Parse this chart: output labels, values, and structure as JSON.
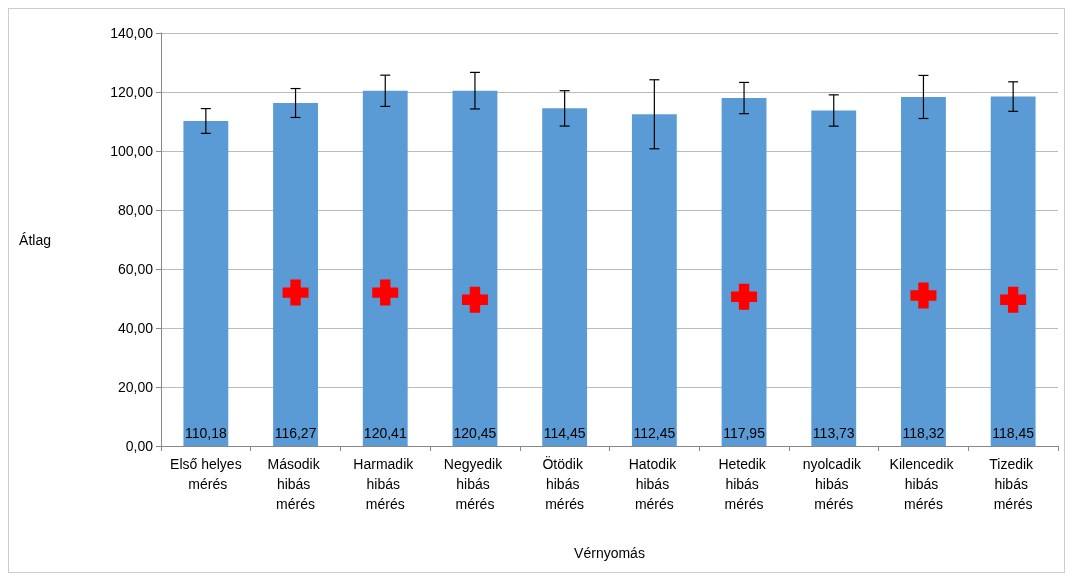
{
  "chart_data": {
    "type": "bar",
    "xlabel": "Vérnyomás",
    "ylabel": "Átlag",
    "categories": [
      "Első helyes mérés",
      "Második hibás mérés",
      "Harmadik hibás mérés",
      "Negyedik hibás mérés",
      "Ötödik hibás mérés",
      "Hatodik hibás mérés",
      "Hetedik hibás mérés",
      "nyolcadik hibás mérés",
      "Kilencedik hibás mérés",
      "Tizedik hibás mérés"
    ],
    "series": [
      {
        "color": "#5b9bd5",
        "values": [
          110.18,
          116.27,
          120.41,
          120.45,
          114.45,
          112.45,
          117.95,
          113.73,
          118.32,
          118.45
        ],
        "errors": [
          4.2,
          4.9,
          5.3,
          6.2,
          6.0,
          11.7,
          5.3,
          5.3,
          7.3,
          5.0
        ],
        "value_labels": [
          "110,18",
          "116,27",
          "120,41",
          "120,45",
          "114,45",
          "112,45",
          "117,95",
          "113,73",
          "118,32",
          "118,45"
        ]
      },
      {
        "type": "scatter",
        "color": "#ff0000",
        "marker": "cross",
        "x": [
          "Második hibás mérés",
          "Harmadik hibás mérés",
          "Negyedik hibás mérés",
          "Hetedik hibás mérés",
          "Kilencedik hibás mérés",
          "Tizedik hibás mérés"
        ],
        "values": [
          52,
          52,
          49.6,
          50.6,
          51,
          49.6
        ]
      }
    ],
    "ylim": [
      0,
      140
    ],
    "yticks": [
      {
        "value": 0,
        "label": "0,00"
      },
      {
        "value": 20,
        "label": "20,00"
      },
      {
        "value": 40,
        "label": "40,00"
      },
      {
        "value": 60,
        "label": "60,00"
      },
      {
        "value": 80,
        "label": "80,00"
      },
      {
        "value": 100,
        "label": "100,00"
      },
      {
        "value": 120,
        "label": "120,00"
      },
      {
        "value": 140,
        "label": "140,00"
      }
    ],
    "grid": "y"
  }
}
